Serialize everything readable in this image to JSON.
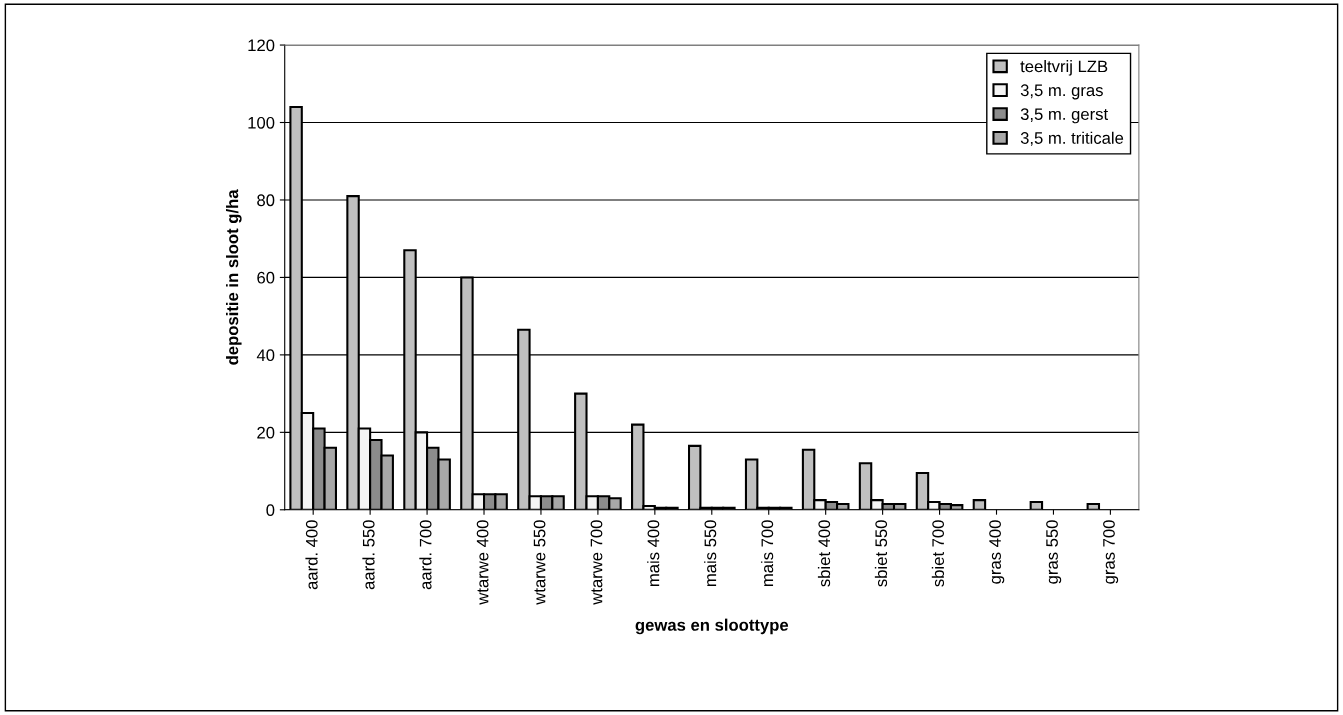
{
  "chart_data": {
    "type": "bar",
    "xlabel": "gewas en sloottype",
    "ylabel": "depositie in sloot g/ha",
    "categories": [
      "aard. 400",
      "aard. 550",
      "aard. 700",
      "wtarwe 400",
      "wtarwe 550",
      "wtarwe 700",
      "mais 400",
      "mais 550",
      "mais 700",
      "sbiet 400",
      "sbiet 550",
      "sbiet 700",
      "gras 400",
      "gras 550",
      "gras 700"
    ],
    "series": [
      {
        "name": "teeltvrij LZB",
        "color": "#c0c0c0",
        "values": [
          104,
          81,
          67,
          60,
          46.5,
          30,
          22,
          16.5,
          13,
          15.5,
          12,
          9.5,
          2.5,
          2,
          1.5
        ]
      },
      {
        "name": "3,5 m. gras",
        "color": "#f4f4f4",
        "values": [
          25,
          21,
          20,
          4,
          3.5,
          3.5,
          1,
          0.5,
          0.5,
          2.5,
          2.5,
          2,
          null,
          null,
          null
        ]
      },
      {
        "name": "3,5 m. gerst",
        "color": "#8c8c8c",
        "values": [
          21,
          18,
          16,
          4,
          3.5,
          3.5,
          0.5,
          0.5,
          0.5,
          2,
          1.5,
          1.5,
          null,
          null,
          null
        ]
      },
      {
        "name": "3,5 m. triticale",
        "color": "#a8a8a8",
        "values": [
          16,
          14,
          13,
          4,
          3.5,
          3,
          0.5,
          0.5,
          0.5,
          1.5,
          1.5,
          1.2,
          null,
          null,
          null
        ]
      }
    ],
    "ylim": [
      0,
      120
    ],
    "yticks": [
      0,
      20,
      40,
      60,
      80,
      100,
      120
    ],
    "grid": "y",
    "legend": "top right"
  }
}
